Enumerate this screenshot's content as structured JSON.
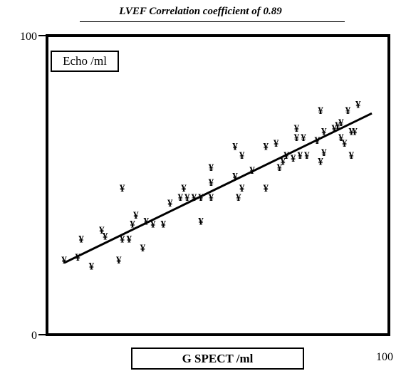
{
  "chart_data": {
    "type": "scatter",
    "title": "LVEF Correlation coefficient of 0.89",
    "xlabel": "G SPECT /ml",
    "ylabel": "Echo /ml",
    "xlim": [
      0,
      100
    ],
    "ylim": [
      0,
      100
    ],
    "x_ticks": [
      "100"
    ],
    "y_ticks": [
      "0",
      "100"
    ],
    "marker": "¥",
    "grid": false,
    "points": [
      {
        "x": 5,
        "y": 25
      },
      {
        "x": 9,
        "y": 26
      },
      {
        "x": 10,
        "y": 32
      },
      {
        "x": 13,
        "y": 23
      },
      {
        "x": 16,
        "y": 35
      },
      {
        "x": 17,
        "y": 33
      },
      {
        "x": 21,
        "y": 25
      },
      {
        "x": 22,
        "y": 49
      },
      {
        "x": 22,
        "y": 32
      },
      {
        "x": 24,
        "y": 32
      },
      {
        "x": 25,
        "y": 37
      },
      {
        "x": 26,
        "y": 40
      },
      {
        "x": 28,
        "y": 29
      },
      {
        "x": 29,
        "y": 38
      },
      {
        "x": 31,
        "y": 37
      },
      {
        "x": 34,
        "y": 37
      },
      {
        "x": 36,
        "y": 44
      },
      {
        "x": 39,
        "y": 46
      },
      {
        "x": 40,
        "y": 49
      },
      {
        "x": 41,
        "y": 46
      },
      {
        "x": 43,
        "y": 46
      },
      {
        "x": 45,
        "y": 38
      },
      {
        "x": 45,
        "y": 46
      },
      {
        "x": 48,
        "y": 46
      },
      {
        "x": 48,
        "y": 51
      },
      {
        "x": 48,
        "y": 56
      },
      {
        "x": 55,
        "y": 53
      },
      {
        "x": 55,
        "y": 63
      },
      {
        "x": 56,
        "y": 46
      },
      {
        "x": 57,
        "y": 49
      },
      {
        "x": 57,
        "y": 60
      },
      {
        "x": 60,
        "y": 55
      },
      {
        "x": 64,
        "y": 63
      },
      {
        "x": 64,
        "y": 49
      },
      {
        "x": 67,
        "y": 64
      },
      {
        "x": 68,
        "y": 56
      },
      {
        "x": 69,
        "y": 58
      },
      {
        "x": 70,
        "y": 60
      },
      {
        "x": 72,
        "y": 59
      },
      {
        "x": 73,
        "y": 69
      },
      {
        "x": 73,
        "y": 66
      },
      {
        "x": 74,
        "y": 60
      },
      {
        "x": 75,
        "y": 66
      },
      {
        "x": 76,
        "y": 60
      },
      {
        "x": 79,
        "y": 65
      },
      {
        "x": 80,
        "y": 75
      },
      {
        "x": 80,
        "y": 58
      },
      {
        "x": 81,
        "y": 68
      },
      {
        "x": 81,
        "y": 61
      },
      {
        "x": 84,
        "y": 69
      },
      {
        "x": 85,
        "y": 70
      },
      {
        "x": 86,
        "y": 71
      },
      {
        "x": 86,
        "y": 66
      },
      {
        "x": 87,
        "y": 64
      },
      {
        "x": 88,
        "y": 75
      },
      {
        "x": 89,
        "y": 68
      },
      {
        "x": 89,
        "y": 60
      },
      {
        "x": 90,
        "y": 68
      },
      {
        "x": 91,
        "y": 77
      }
    ],
    "regression_line": {
      "x": [
        5,
        95
      ],
      "y": [
        24,
        74
      ]
    }
  }
}
